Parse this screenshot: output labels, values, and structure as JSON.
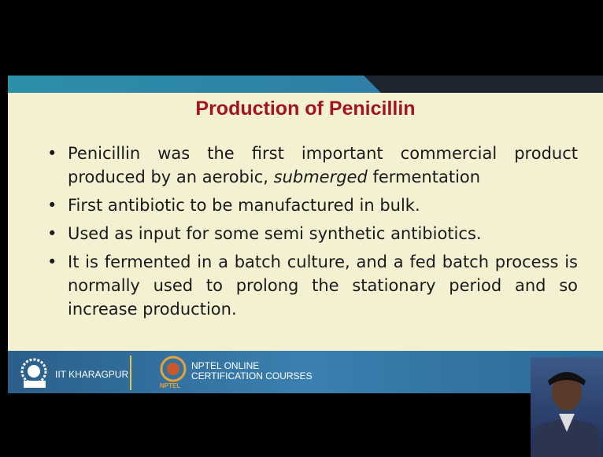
{
  "slide": {
    "title": "Production of Penicillin",
    "bullets": [
      [
        "Penicillin was the first important commercial product produced by an aerobic, ",
        "submerged",
        " fermentation"
      ],
      [
        "First antibiotic to be manufactured in bulk."
      ],
      [
        "Used as input  for some semi synthetic antibiotics."
      ],
      [
        "It is fermented in a batch culture, and a fed batch process is normally used to prolong the stationary period and so increase production."
      ]
    ]
  },
  "footer": {
    "institute": "IIT KHARAGPUR",
    "nptel_line1": "NPTEL ONLINE",
    "nptel_line2": "CERTIFICATION COURSES",
    "nptel_logo": "NPTEL"
  }
}
